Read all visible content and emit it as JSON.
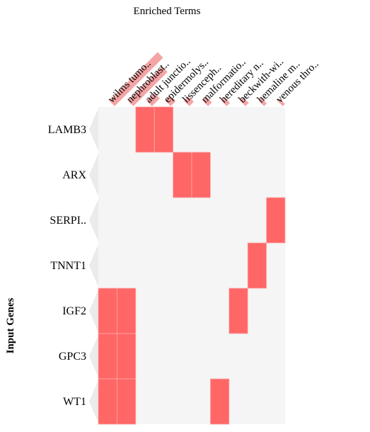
{
  "chart_data": {
    "type": "heatmap",
    "title": "Enriched Terms",
    "ylabel": "Input Genes",
    "x_terms": [
      "wilms tumo..",
      "nephroblast..",
      "adult junctio..",
      "epidermolys..",
      "lissenceph..",
      "malformatio..",
      "hereditary n..",
      "beckwith-wi..",
      "hemaline m..",
      "venous thro.."
    ],
    "term_bar_values": [
      0.88,
      0.62,
      0.14,
      0.09,
      0.08,
      0.07,
      0.06,
      0.06,
      0.05,
      0.04
    ],
    "genes": [
      "LAMB3",
      "ARX",
      "SERPI..",
      "TNNT1",
      "IGF2",
      "GPC3",
      "WT1"
    ],
    "gene_bar_values": [
      0.13,
      0.13,
      0.13,
      0.13,
      0.13,
      0.13,
      0.13
    ],
    "matrix": [
      [
        0,
        0,
        1,
        1,
        0,
        0,
        0,
        0,
        0,
        0
      ],
      [
        0,
        0,
        0,
        0,
        1,
        1,
        0,
        0,
        0,
        0
      ],
      [
        0,
        0,
        0,
        0,
        0,
        0,
        0,
        0,
        0,
        1
      ],
      [
        0,
        0,
        0,
        0,
        0,
        0,
        0,
        0,
        1,
        0
      ],
      [
        1,
        1,
        0,
        0,
        0,
        0,
        0,
        1,
        0,
        0
      ],
      [
        1,
        1,
        0,
        0,
        0,
        0,
        0,
        0,
        0,
        0
      ],
      [
        1,
        1,
        0,
        0,
        0,
        0,
        1,
        0,
        0,
        0
      ]
    ],
    "colors": {
      "cell": "#ff6666",
      "cell_border": "#ffaaaa",
      "panel": "#f5f5f5",
      "term_bar": "#f4a4a4",
      "gene_bar": "#ebebeb"
    }
  }
}
